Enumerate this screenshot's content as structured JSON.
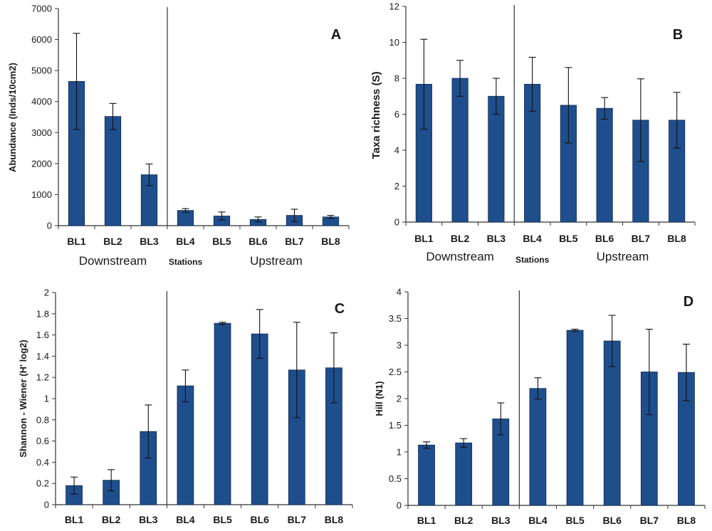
{
  "colors": {
    "bar": "#1f4e8c",
    "bar_edge": "#0d2a52",
    "axis": "#333333",
    "divider": "#333333"
  },
  "chart_data": [
    {
      "type": "bar",
      "panel": "A",
      "ylabel": "Abundance (Inds/10cm2)",
      "ylim": [
        0,
        7000
      ],
      "yticks": [
        0,
        1000,
        2000,
        3000,
        4000,
        5000,
        6000,
        7000
      ],
      "categories": [
        "BL1",
        "BL2",
        "BL3",
        "BL4",
        "BL5",
        "BL6",
        "BL7",
        "BL8"
      ],
      "values": [
        4650,
        3520,
        1640,
        490,
        310,
        200,
        330,
        280
      ],
      "errors": [
        1550,
        420,
        350,
        60,
        130,
        80,
        200,
        50
      ],
      "region_labels": {
        "left": "Downstream",
        "middle": "Stations",
        "right": "Upstream"
      },
      "grid": false
    },
    {
      "type": "bar",
      "panel": "B",
      "ylabel": "Taxa   richness (S)",
      "ylim": [
        0,
        12
      ],
      "yticks": [
        0,
        2,
        4,
        6,
        8,
        10,
        12
      ],
      "categories": [
        "BL1",
        "BL2",
        "BL3",
        "BL4",
        "BL5",
        "BL6",
        "BL7",
        "BL8"
      ],
      "values": [
        7.67,
        8.0,
        7.0,
        7.67,
        6.5,
        6.33,
        5.67,
        5.67
      ],
      "errors": [
        2.5,
        1.0,
        1.0,
        1.5,
        2.1,
        0.6,
        2.3,
        1.55
      ],
      "region_labels": {
        "left": "Downstream",
        "middle": "Stations",
        "right": "Upstream"
      },
      "grid": false
    },
    {
      "type": "bar",
      "panel": "C",
      "ylabel": "Shannon - Wiener (H' log2)",
      "ylim": [
        0,
        2
      ],
      "yticks": [
        0,
        0.2,
        0.4,
        0.6,
        0.8,
        1,
        1.2,
        1.4,
        1.6,
        1.8,
        2
      ],
      "categories": [
        "BL1",
        "BL2",
        "BL3",
        "BL4",
        "BL5",
        "BL6",
        "BL7",
        "BL8"
      ],
      "values": [
        0.18,
        0.23,
        0.69,
        1.12,
        1.71,
        1.61,
        1.27,
        1.29
      ],
      "errors": [
        0.08,
        0.1,
        0.25,
        0.15,
        0.01,
        0.23,
        0.45,
        0.33
      ],
      "grid": false
    },
    {
      "type": "bar",
      "panel": "D",
      "ylabel": "Hill (N1)",
      "ylim": [
        0,
        4
      ],
      "yticks": [
        0,
        0.5,
        1,
        1.5,
        2,
        2.5,
        3,
        3.5,
        4
      ],
      "categories": [
        "BL1",
        "BL2",
        "BL3",
        "BL4",
        "BL5",
        "BL6",
        "BL7",
        "BL8"
      ],
      "values": [
        1.13,
        1.17,
        1.62,
        2.19,
        3.28,
        3.08,
        2.5,
        2.49
      ],
      "errors": [
        0.06,
        0.08,
        0.3,
        0.2,
        0.02,
        0.48,
        0.8,
        0.53
      ],
      "grid": false
    }
  ]
}
